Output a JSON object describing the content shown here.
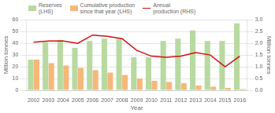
{
  "chart_data": {
    "type": "bar",
    "categories": [
      "2002",
      "2003",
      "2004",
      "2005",
      "2006",
      "2007",
      "2008",
      "2009",
      "2010",
      "2011",
      "2012",
      "2013",
      "2014",
      "2015",
      "2016"
    ],
    "series": [
      {
        "name": "Reserves\n(LHS)",
        "color": "#b8d9a0",
        "values": [
          26,
          41,
          43,
          36,
          42,
          44,
          44,
          28,
          28,
          42,
          44,
          51,
          42,
          42,
          57
        ]
      },
      {
        "name": "Cumulative production\nsince that year (LHS)",
        "color": "#f5b87a",
        "values": [
          26,
          23,
          21,
          19,
          17,
          15,
          13,
          10,
          8,
          7,
          6,
          4,
          3,
          2,
          1
        ]
      },
      {
        "name": "Annual\nproduction (RHS)",
        "color": "#cc1111",
        "type": "line",
        "axis": "y2",
        "values": [
          2.05,
          2.1,
          2.1,
          2.0,
          2.35,
          2.3,
          2.2,
          1.7,
          1.45,
          1.4,
          1.45,
          1.6,
          1.5,
          1.0,
          1.45
        ]
      }
    ],
    "x_label": "Year",
    "y_label": "Million tonnes",
    "y2_label": "Million tonnes",
    "ylim": [
      0,
      60
    ],
    "yticks": [
      0,
      10,
      20,
      30,
      40,
      50,
      60
    ],
    "y2lim": [
      0,
      3.0
    ],
    "y2ticks": [
      {
        "value": 0,
        "label": "0.0"
      },
      0.5,
      {
        "value": 1,
        "label": "1.0"
      },
      1.5,
      {
        "value": 2,
        "label": "2.0"
      },
      2.5,
      {
        "value": 3,
        "label": "3.0"
      }
    ],
    "grid": true,
    "legend": "upper left"
  }
}
